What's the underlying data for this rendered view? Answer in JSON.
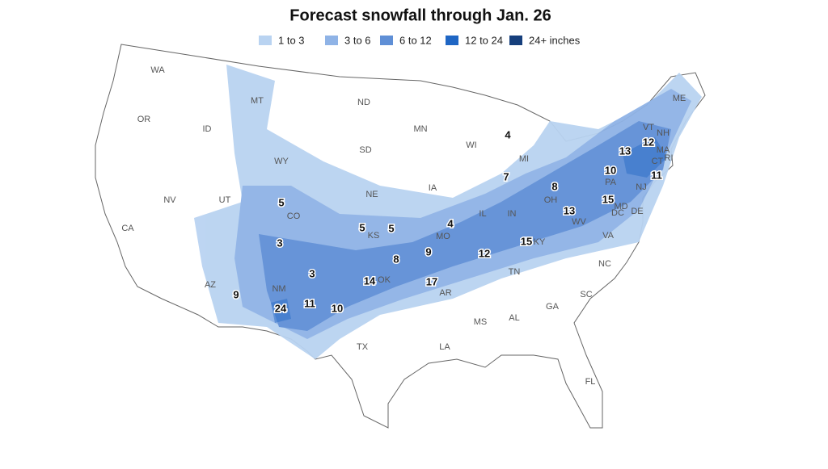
{
  "title": "Forecast snowfall through Jan. 26",
  "legend": [
    {
      "label": "1 to 3",
      "color": "#b9d3f1"
    },
    {
      "label": "3 to 6",
      "color": "#8fb3e6"
    },
    {
      "label": "6 to 12",
      "color": "#5f8fd6"
    },
    {
      "label": "12 to 24",
      "color": "#1f66c4"
    },
    {
      "label": "24+ inches",
      "color": "#163f7c"
    }
  ],
  "states": [
    "WA",
    "OR",
    "CA",
    "NV",
    "ID",
    "MT",
    "WY",
    "UT",
    "AZ",
    "CO",
    "NM",
    "ND",
    "SD",
    "NE",
    "KS",
    "OK",
    "TX",
    "MN",
    "IA",
    "MO",
    "AR",
    "LA",
    "WI",
    "IL",
    "MI",
    "IN",
    "OH",
    "KY",
    "TN",
    "MS",
    "AL",
    "GA",
    "FL",
    "SC",
    "NC",
    "VA",
    "WV",
    "PA",
    "MD",
    "DC",
    "DE",
    "NJ",
    "CT",
    "RI",
    "MA",
    "VT",
    "NH",
    "ME"
  ],
  "amounts": [
    "4",
    "13",
    "12",
    "10",
    "11",
    "7",
    "8",
    "5",
    "15",
    "13",
    "4",
    "5",
    "5",
    "3",
    "15",
    "9",
    "12",
    "8",
    "3",
    "14",
    "17",
    "9",
    "11",
    "24",
    "10"
  ]
}
